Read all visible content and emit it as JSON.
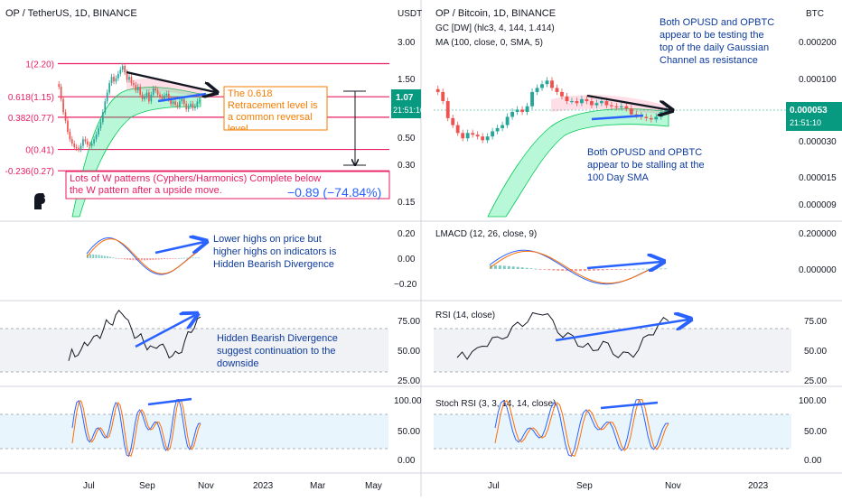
{
  "colors": {
    "background": "#ffffff",
    "grid": "#f0f3fa",
    "axis_text": "#131722",
    "candle_up": "#26a69a",
    "candle_down": "#ef5350",
    "fib_line": "#e91e63",
    "fib_label": "#e91e63",
    "channel_fill": "#00e676",
    "channel_upper_fill": "#ff6f91",
    "annotation_text": "#0d3a9b",
    "arrow_blue": "#2962ff",
    "arrow_black": "#131722",
    "price_badge": "#089981",
    "orange_box": "#f57c00",
    "macd_line": "#2962ff",
    "signal_line": "#ff6d00",
    "rsi_line": "#131722",
    "rsi_band": "#e0e3eb",
    "stoch_k": "#2962ff",
    "stoch_d": "#ff6d00",
    "stoch_band": "#e3f2fd"
  },
  "left": {
    "title": "OP / TetherUS, 1D, BINANCE",
    "axis_unit": "USDT",
    "price_ticks": [
      "3.00",
      "1.50",
      "0.50",
      "0.30",
      "0.15"
    ],
    "price_current": "1.07",
    "price_countdown": "21:51:10",
    "fib_labels": [
      "1(2.20)",
      "0.618(1.15)",
      "0.382(0.77)",
      "0(0.41)",
      "-0.236(0.27)"
    ],
    "retracement_note": "The 0.618 Retracement level is a common reversal level",
    "w_note": "Lots of W patterns (Cyphers/Harmonics) Complete below the W pattern after a upside move.",
    "measure_label": "−0.89 (−74.84%)",
    "macd_ticks": [
      "0.20",
      "0.00",
      "−0.20"
    ],
    "macd_note": "Lower highs on price but higher highs on indicators is Hidden Bearish Divergence",
    "rsi_ticks": [
      "75.00",
      "50.00",
      "25.00"
    ],
    "rsi_note": "Hidden Bearish Divergence suggest continuation to the downside",
    "stoch_ticks": [
      "100.00",
      "50.00",
      "0.00"
    ],
    "time_labels": [
      "Jul",
      "Sep",
      "Nov",
      "2023",
      "Mar",
      "May"
    ]
  },
  "right": {
    "title": "OP / Bitcoin, 1D, BINANCE",
    "indicator_gc": "GC [DW] (hlc3, 4, 144, 1.414)",
    "indicator_ma": "MA (100, close, 0, SMA, 5)",
    "axis_unit": "BTC",
    "price_ticks": [
      "0.000200",
      "0.000100",
      "0.000030",
      "0.000015",
      "0.000009"
    ],
    "price_current": "0.000053",
    "price_countdown": "21:51:10",
    "gaussian_note": "Both OPUSD and OPBTC appear to be testing the top of the daily Gaussian Channel as resistance",
    "sma_note": "Both OPUSD and OPBTC appear to be stalling at the 100 Day SMA",
    "macd_title": "LMACD (12, 26, close, 9)",
    "macd_ticks": [
      "0.200000",
      "0.000000"
    ],
    "rsi_title": "RSI (14, close)",
    "rsi_ticks": [
      "75.00",
      "50.00",
      "25.00"
    ],
    "stoch_title": "Stoch RSI (3, 3, 14, 14, close)",
    "stoch_ticks": [
      "100.00",
      "50.00",
      "0.00"
    ],
    "time_labels": [
      "Jul",
      "Sep",
      "Nov",
      "2023"
    ]
  },
  "chart_data": [
    {
      "type": "candlestick",
      "title": "OP / TetherUS, 1D, BINANCE",
      "ylabel": "USDT",
      "y_scale": "log",
      "ylim": [
        0.11,
        4.5
      ],
      "x_labels": [
        "Jul",
        "Sep",
        "Nov",
        "2023",
        "Mar",
        "May"
      ],
      "fib_levels": [
        {
          "label": "1(2.20)",
          "value": 2.2
        },
        {
          "label": "0.618(1.15)",
          "value": 1.15
        },
        {
          "label": "0.382(0.77)",
          "value": 0.77
        },
        {
          "label": "0(0.41)",
          "value": 0.41
        },
        {
          "label": "-0.236(0.27)",
          "value": 0.27
        }
      ],
      "close": [
        1.4,
        1.1,
        0.85,
        0.72,
        0.58,
        0.5,
        0.46,
        0.43,
        0.42,
        0.41,
        0.44,
        0.5,
        0.48,
        0.45,
        0.44,
        0.46,
        0.5,
        0.55,
        0.62,
        0.7,
        0.85,
        1.05,
        1.25,
        1.5,
        1.7,
        1.55,
        1.65,
        1.8,
        1.95,
        2.1,
        1.85,
        1.6,
        1.7,
        1.5,
        1.45,
        1.3,
        1.4,
        1.2,
        1.1,
        1.15,
        1.25,
        1.05,
        1.2,
        1.35,
        1.3,
        1.2,
        1.15,
        1.1,
        1.18,
        1.22,
        1.1,
        1.0,
        1.05,
        0.98,
        0.95,
        1.05,
        1.1,
        1.0,
        0.9,
        0.95,
        1.0,
        0.92,
        0.95,
        1.05,
        1.07
      ],
      "current_price": 1.07
    },
    {
      "type": "candlestick",
      "title": "OP / Bitcoin, 1D, BINANCE",
      "ylabel": "BTC",
      "y_scale": "log",
      "ylim": [
        8.5e-06,
        0.00021
      ],
      "x_labels": [
        "Jul",
        "Sep",
        "Nov",
        "2023"
      ],
      "close": [
        7e-05,
        6e-05,
        4.5e-05,
        4e-05,
        3.5e-05,
        3.2e-05,
        3.5e-05,
        3.4e-05,
        3.3e-05,
        3.1e-05,
        3.3e-05,
        3.6e-05,
        3.8e-05,
        4e-05,
        4.6e-05,
        5e-05,
        5.2e-05,
        5e-05,
        5.5e-05,
        7e-05,
        7.5e-05,
        8e-05,
        8.5e-05,
        7.5e-05,
        7e-05,
        6.5e-05,
        6e-05,
        6e-05,
        5.8e-05,
        6.2e-05,
        6e-05,
        5.6e-05,
        5.8e-05,
        6e-05,
        5.6e-05,
        5.5e-05,
        5.4e-05,
        5.5e-05,
        5.3e-05,
        4.8e-05,
        4.7e-05,
        4.6e-05,
        4.5e-05,
        4.4e-05,
        4.6e-05,
        5e-05,
        5.3e-05
      ],
      "current_price": 5.3e-05
    },
    {
      "type": "line",
      "title": "RSI (14, close)",
      "ylim": [
        20,
        85
      ],
      "levels": [
        70,
        30
      ],
      "series": [
        {
          "values": [
            38,
            45,
            44,
            47,
            46,
            52,
            55,
            57,
            56,
            60,
            62,
            65,
            70,
            72,
            73,
            76,
            79,
            82,
            78,
            70,
            65,
            62,
            60,
            58,
            55,
            52,
            50,
            47,
            52,
            55,
            50,
            46,
            45,
            44,
            43,
            45,
            50,
            55,
            60,
            65,
            70,
            72,
            74
          ]
        }
      ]
    }
  ]
}
